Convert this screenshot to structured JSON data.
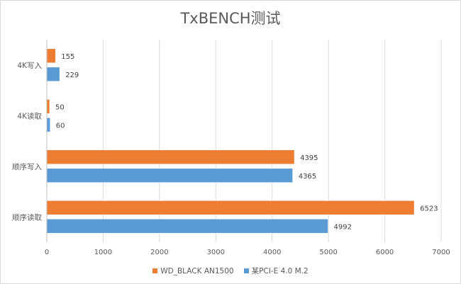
{
  "chart_data": {
    "type": "bar",
    "orientation": "horizontal",
    "title": "TxBENCH测试",
    "categories": [
      "4K写入",
      "4K读取",
      "顺序写入",
      "顺序读取"
    ],
    "series": [
      {
        "name": "WD_BLACK AN1500",
        "color": "#ED7D31",
        "values": [
          155,
          50,
          4395,
          6523
        ]
      },
      {
        "name": "某PCI-E 4.0 M.2",
        "color": "#5B9BD5",
        "values": [
          229,
          60,
          4365,
          4992
        ]
      }
    ],
    "xlim": [
      0,
      7000
    ],
    "xticks": [
      "0",
      "1000",
      "2000",
      "3000",
      "4000",
      "5000",
      "6000",
      "7000"
    ],
    "grid": true,
    "legend_position": "bottom"
  }
}
